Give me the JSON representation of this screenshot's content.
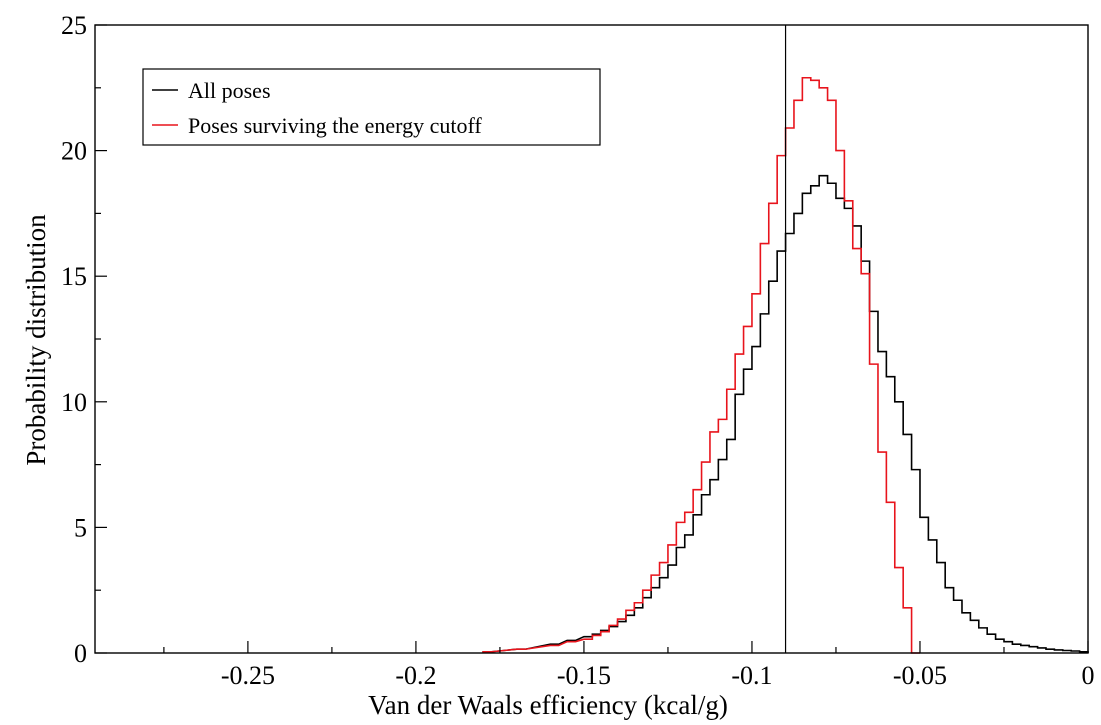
{
  "chart_data": {
    "type": "line",
    "xlabel": "Van der Waals efficiency (kcal/g)",
    "ylabel": "Probability distribution",
    "xlim": [
      -0.2955,
      0.0
    ],
    "ylim": [
      0,
      25
    ],
    "x_ticks": [
      -0.25,
      -0.2,
      -0.15,
      -0.1,
      -0.05,
      0
    ],
    "x_tick_labels": [
      "-0.25",
      "-0.2",
      "-0.15",
      "-0.1",
      "-0.05",
      "0"
    ],
    "y_ticks": [
      0,
      5,
      10,
      15,
      20,
      25
    ],
    "y_tick_labels": [
      "0",
      "5",
      "10",
      "15",
      "20",
      "25"
    ],
    "grid": false,
    "legend_position": "top-left",
    "cutoff_line_x": -0.09,
    "bin_width": 0.0025,
    "series": [
      {
        "name": "All poses",
        "color": "#000000",
        "style": "step",
        "x": [
          -0.18,
          -0.17,
          -0.16,
          -0.155,
          -0.15,
          -0.1475,
          -0.145,
          -0.1425,
          -0.14,
          -0.1375,
          -0.135,
          -0.1325,
          -0.13,
          -0.1275,
          -0.125,
          -0.1225,
          -0.12,
          -0.1175,
          -0.115,
          -0.1125,
          -0.11,
          -0.1075,
          -0.105,
          -0.1025,
          -0.1,
          -0.0975,
          -0.095,
          -0.0925,
          -0.09,
          -0.0875,
          -0.085,
          -0.0825,
          -0.08,
          -0.0775,
          -0.075,
          -0.0725,
          -0.07,
          -0.0675,
          -0.065,
          -0.0625,
          -0.06,
          -0.0575,
          -0.055,
          -0.0525,
          -0.05,
          -0.0475,
          -0.045,
          -0.0425,
          -0.04,
          -0.0375,
          -0.035,
          -0.0325,
          -0.03,
          -0.0275,
          -0.025,
          -0.0225,
          -0.02,
          -0.0175,
          -0.015,
          -0.0125,
          -0.01,
          -0.0075,
          -0.005,
          -0.0025
        ],
        "y": [
          0.05,
          0.15,
          0.35,
          0.5,
          0.65,
          0.75,
          0.9,
          1.05,
          1.25,
          1.5,
          1.8,
          2.2,
          2.6,
          3.0,
          3.5,
          4.2,
          4.7,
          5.5,
          6.3,
          6.9,
          7.7,
          8.5,
          10.3,
          11.3,
          12.2,
          13.5,
          14.8,
          16.0,
          16.7,
          17.5,
          18.3,
          18.6,
          19.0,
          18.7,
          18.1,
          17.7,
          17.0,
          15.6,
          13.6,
          12.0,
          11.0,
          10.0,
          8.7,
          7.3,
          5.4,
          4.5,
          3.6,
          2.6,
          2.1,
          1.6,
          1.3,
          1.0,
          0.75,
          0.55,
          0.45,
          0.35,
          0.3,
          0.25,
          0.2,
          0.15,
          0.12,
          0.1,
          0.08,
          0.05
        ]
      },
      {
        "name": "Poses surviving the energy cutoff",
        "color": "#e8141c",
        "style": "step",
        "x": [
          -0.18,
          -0.17,
          -0.16,
          -0.155,
          -0.15,
          -0.1475,
          -0.145,
          -0.1425,
          -0.14,
          -0.1375,
          -0.135,
          -0.1325,
          -0.13,
          -0.1275,
          -0.125,
          -0.1225,
          -0.12,
          -0.1175,
          -0.115,
          -0.1125,
          -0.11,
          -0.1075,
          -0.105,
          -0.1025,
          -0.1,
          -0.0975,
          -0.095,
          -0.0925,
          -0.09,
          -0.0875,
          -0.085,
          -0.0825,
          -0.08,
          -0.0775,
          -0.075,
          -0.0725,
          -0.07,
          -0.0675,
          -0.065,
          -0.0625,
          -0.06,
          -0.0575,
          -0.055,
          -0.0525
        ],
        "y": [
          0.05,
          0.15,
          0.3,
          0.45,
          0.55,
          0.7,
          0.85,
          1.1,
          1.35,
          1.7,
          2.0,
          2.5,
          3.1,
          3.6,
          4.3,
          5.2,
          5.6,
          6.5,
          7.6,
          8.8,
          9.3,
          10.5,
          11.9,
          13.0,
          14.3,
          16.3,
          17.9,
          19.8,
          20.9,
          22.0,
          22.9,
          22.8,
          22.5,
          22.0,
          20.0,
          18.0,
          16.1,
          15.1,
          11.5,
          8.0,
          6.0,
          3.4,
          1.8,
          0.0
        ]
      }
    ]
  }
}
